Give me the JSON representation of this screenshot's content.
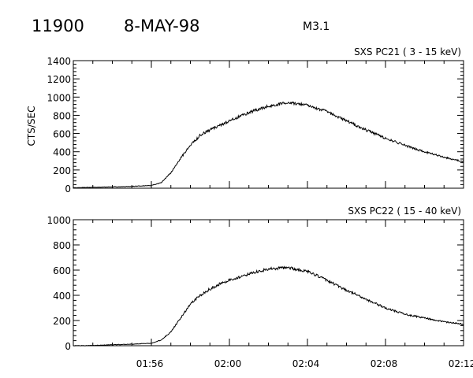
{
  "header": {
    "event_id": "11900",
    "date": "8-MAY-98",
    "flare_class": "M3.1"
  },
  "chart_data": [
    {
      "type": "line",
      "title": "SXS PC21  (  3 - 15 keV)",
      "ylabel": "CTS/SEC",
      "xlabel": "",
      "ylim": [
        0,
        1400
      ],
      "yticks": [
        0,
        200,
        400,
        600,
        800,
        1000,
        1200,
        1400
      ],
      "ytick_labels": [
        "0",
        "200",
        "400",
        "600",
        "800",
        "1000",
        "1200",
        "1400"
      ],
      "xlim": [
        "01:52",
        "02:12"
      ],
      "xticks": [
        "01:56",
        "02:00",
        "02:04",
        "02:08",
        "02:12"
      ],
      "show_xtick_labels": false,
      "grid": false,
      "series": [
        {
          "x": [
            "01:52:00",
            "01:53:00",
            "01:54:00",
            "01:55:00",
            "01:56:00",
            "01:56:30",
            "01:57:00",
            "01:57:30",
            "01:58:00",
            "01:58:30",
            "01:59:00",
            "01:59:30",
            "02:00:00",
            "02:01:00",
            "02:02:00",
            "02:03:00",
            "02:04:00",
            "02:05:00",
            "02:06:00",
            "02:07:00",
            "02:08:00",
            "02:09:00",
            "02:10:00",
            "02:11:00",
            "02:12:00"
          ],
          "values": [
            5,
            10,
            15,
            20,
            30,
            60,
            170,
            330,
            470,
            580,
            640,
            690,
            740,
            830,
            900,
            940,
            910,
            840,
            740,
            640,
            550,
            470,
            400,
            340,
            290
          ],
          "noise": 30
        }
      ]
    },
    {
      "type": "line",
      "title": "SXS PC22  ( 15 - 40 keV)",
      "ylabel": "",
      "xlabel": "",
      "ylim": [
        0,
        1000
      ],
      "yticks": [
        0,
        200,
        400,
        600,
        800,
        1000
      ],
      "ytick_labels": [
        "0",
        "200",
        "400",
        "600",
        "800",
        "1000"
      ],
      "xlim": [
        "01:52",
        "02:12"
      ],
      "xticks": [
        "01:56",
        "02:00",
        "02:04",
        "02:08",
        "02:12"
      ],
      "show_xtick_labels": true,
      "grid": false,
      "series": [
        {
          "x": [
            "01:52:00",
            "01:53:00",
            "01:54:00",
            "01:55:00",
            "01:56:00",
            "01:56:30",
            "01:57:00",
            "01:57:30",
            "01:58:00",
            "01:58:30",
            "01:59:00",
            "01:59:30",
            "02:00:00",
            "02:01:00",
            "02:02:00",
            "02:03:00",
            "02:04:00",
            "02:05:00",
            "02:06:00",
            "02:07:00",
            "02:08:00",
            "02:09:00",
            "02:10:00",
            "02:11:00",
            "02:12:00"
          ],
          "values": [
            0,
            2,
            8,
            12,
            20,
            45,
            110,
            220,
            330,
            400,
            450,
            490,
            520,
            570,
            610,
            620,
            590,
            520,
            440,
            370,
            300,
            250,
            220,
            190,
            170
          ],
          "noise": 22
        }
      ]
    }
  ]
}
